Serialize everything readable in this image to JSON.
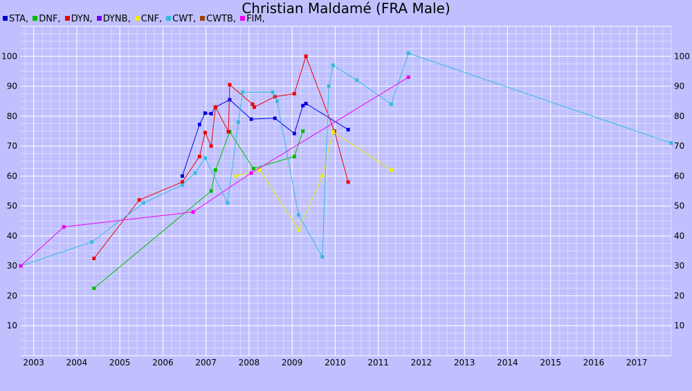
{
  "chart_data": {
    "type": "line",
    "title": "Christian Maldamé (FRA Male)",
    "xlabel": "",
    "ylabel": "",
    "xlim": [
      2002.7,
      2017.8
    ],
    "ylim": [
      0,
      110
    ],
    "x_ticks": [
      "2003",
      "2004",
      "2005",
      "2006",
      "2007",
      "2008",
      "2009",
      "2010",
      "2011",
      "2012",
      "2013",
      "2014",
      "2015",
      "2016",
      "2017"
    ],
    "y_ticks": [
      "10",
      "20",
      "30",
      "40",
      "50",
      "60",
      "70",
      "80",
      "90",
      "100"
    ],
    "grid": true,
    "legend_position": "top-left",
    "series": [
      {
        "name": "STA,",
        "color": "#0000dd",
        "points": [
          [
            2006.45,
            60
          ],
          [
            2006.85,
            77.2
          ],
          [
            2006.98,
            81
          ],
          [
            2007.12,
            80.8
          ],
          [
            2007.22,
            83
          ],
          [
            2007.55,
            85.5
          ],
          [
            2008.05,
            79
          ],
          [
            2008.6,
            79.3
          ],
          [
            2009.05,
            74.2
          ],
          [
            2009.25,
            83.5
          ],
          [
            2009.32,
            84.2
          ],
          [
            2010.3,
            75.5
          ]
        ]
      },
      {
        "name": "DNF,",
        "color": "#00bb00",
        "points": [
          [
            2004.4,
            22.5
          ],
          [
            2007.12,
            55
          ],
          [
            2007.22,
            62
          ],
          [
            2007.55,
            74.8
          ],
          [
            2008.1,
            62.5
          ],
          [
            2009.05,
            66.5
          ],
          [
            2009.25,
            75
          ]
        ]
      },
      {
        "name": "DYN,",
        "color": "#ee0000",
        "points": [
          [
            2004.4,
            32.5
          ],
          [
            2005.45,
            52
          ],
          [
            2006.45,
            58
          ],
          [
            2006.85,
            66.5
          ],
          [
            2006.98,
            74.5
          ],
          [
            2007.12,
            70
          ],
          [
            2007.22,
            83
          ],
          [
            2007.52,
            74.8
          ],
          [
            2007.55,
            90.5
          ],
          [
            2008.08,
            84
          ],
          [
            2008.12,
            83
          ],
          [
            2008.6,
            86.5
          ],
          [
            2009.05,
            87.5
          ],
          [
            2009.32,
            100
          ],
          [
            2009.98,
            75
          ],
          [
            2010.3,
            58
          ]
        ]
      },
      {
        "name": "DYNB,",
        "color": "#7700ee",
        "points": []
      },
      {
        "name": "CNF,",
        "color": "#eeee00",
        "points": [
          [
            2007.7,
            60
          ],
          [
            2008.25,
            62
          ],
          [
            2009.15,
            42
          ],
          [
            2009.7,
            60
          ],
          [
            2009.95,
            74.8
          ],
          [
            2011.3,
            62
          ]
        ]
      },
      {
        "name": "CWT,",
        "color": "#33bbdd",
        "points": [
          [
            2002.7,
            30
          ],
          [
            2004.35,
            38
          ],
          [
            2005.55,
            51
          ],
          [
            2006.45,
            57
          ],
          [
            2006.75,
            61
          ],
          [
            2006.98,
            66
          ],
          [
            2007.5,
            51
          ],
          [
            2007.75,
            78
          ],
          [
            2007.85,
            88
          ],
          [
            2008.55,
            88
          ],
          [
            2008.65,
            85
          ],
          [
            2009.15,
            47
          ],
          [
            2009.7,
            33
          ],
          [
            2009.85,
            90
          ],
          [
            2009.95,
            97
          ],
          [
            2010.5,
            92
          ],
          [
            2011.3,
            84
          ],
          [
            2011.7,
            101
          ],
          [
            2017.8,
            71
          ]
        ]
      },
      {
        "name": "CWTB,",
        "color": "#994400",
        "points": []
      },
      {
        "name": "FIM,",
        "color": "#ee00ee",
        "points": [
          [
            2002.7,
            30
          ],
          [
            2003.7,
            43
          ],
          [
            2006.7,
            48
          ],
          [
            2008.05,
            61
          ],
          [
            2011.7,
            93
          ]
        ]
      }
    ]
  }
}
